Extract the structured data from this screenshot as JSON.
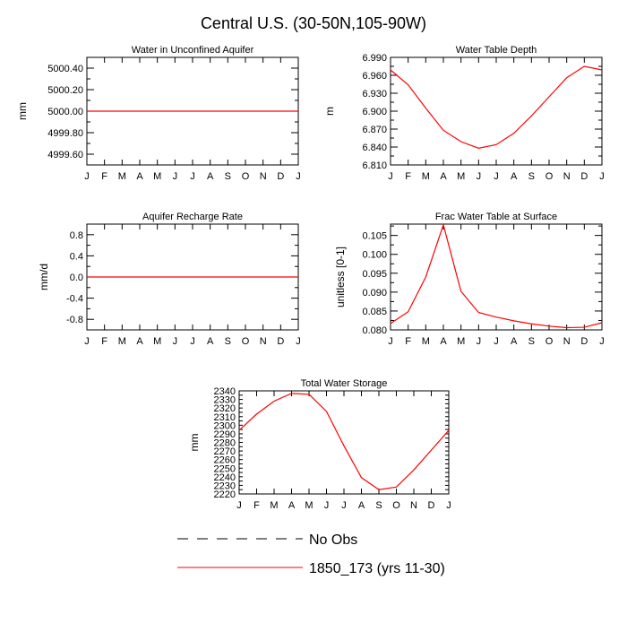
{
  "title": "Central U.S. (30-50N,105-90W)",
  "colors": {
    "line": "#ff0000",
    "axis": "#000000",
    "obs": "#000000"
  },
  "legend": {
    "entries": [
      {
        "label": "No Obs",
        "style": "dashed"
      },
      {
        "label": "1850_173 (yrs 11-30)",
        "style": "solid"
      }
    ]
  },
  "chart_data": [
    {
      "type": "line",
      "title": "Water in Unconfined Aquifer",
      "xlabel": "",
      "ylabel": "mm",
      "categories": [
        "J",
        "F",
        "M",
        "A",
        "M",
        "J",
        "J",
        "A",
        "S",
        "O",
        "N",
        "D",
        "J"
      ],
      "ylim": [
        4999.5,
        5000.5
      ],
      "yticks": [
        4999.6,
        4999.8,
        5000.0,
        5000.2,
        5000.4
      ],
      "ytick_labels": [
        "4999.60",
        "4999.80",
        "5000.00",
        "5000.20",
        "5000.40"
      ],
      "series": [
        {
          "name": "1850_173 (yrs 11-30)",
          "values": [
            5000,
            5000,
            5000,
            5000,
            5000,
            5000,
            5000,
            5000,
            5000,
            5000,
            5000,
            5000,
            5000
          ]
        }
      ]
    },
    {
      "type": "line",
      "title": "Water Table Depth",
      "xlabel": "",
      "ylabel": "m",
      "categories": [
        "J",
        "F",
        "M",
        "A",
        "M",
        "J",
        "J",
        "A",
        "S",
        "O",
        "N",
        "D",
        "J"
      ],
      "ylim": [
        6.81,
        6.99
      ],
      "yticks": [
        6.81,
        6.84,
        6.87,
        6.9,
        6.93,
        6.96,
        6.99
      ],
      "ytick_labels": [
        "6.810",
        "6.840",
        "6.870",
        "6.900",
        "6.930",
        "6.960",
        "6.990"
      ],
      "series": [
        {
          "name": "1850_173 (yrs 11-30)",
          "values": [
            6.969,
            6.944,
            6.905,
            6.868,
            6.849,
            6.838,
            6.844,
            6.863,
            6.892,
            6.924,
            6.956,
            6.975,
            6.969
          ]
        }
      ]
    },
    {
      "type": "line",
      "title": "Aquifer Recharge Rate",
      "xlabel": "",
      "ylabel": "mm/d",
      "categories": [
        "J",
        "F",
        "M",
        "A",
        "M",
        "J",
        "J",
        "A",
        "S",
        "O",
        "N",
        "D",
        "J"
      ],
      "ylim": [
        -1.0,
        1.0
      ],
      "yticks": [
        -0.8,
        -0.4,
        0.0,
        0.4,
        0.8
      ],
      "ytick_labels": [
        "-0.8",
        "-0.4",
        "0.0",
        "0.4",
        "0.8"
      ],
      "series": [
        {
          "name": "1850_173 (yrs 11-30)",
          "values": [
            0,
            0,
            0,
            0,
            0,
            0,
            0,
            0,
            0,
            0,
            0,
            0,
            0
          ]
        }
      ]
    },
    {
      "type": "line",
      "title": "Frac Water Table at Surface",
      "xlabel": "",
      "ylabel": "unitless [0-1]",
      "categories": [
        "J",
        "F",
        "M",
        "A",
        "M",
        "J",
        "J",
        "A",
        "S",
        "O",
        "N",
        "D",
        "J"
      ],
      "ylim": [
        0.08,
        0.108
      ],
      "yticks": [
        0.08,
        0.085,
        0.09,
        0.095,
        0.1,
        0.105
      ],
      "ytick_labels": [
        "0.080",
        "0.085",
        "0.090",
        "0.095",
        "0.100",
        "0.105"
      ],
      "series": [
        {
          "name": "1850_173 (yrs 11-30)",
          "values": [
            0.0817,
            0.0848,
            0.094,
            0.1078,
            0.0902,
            0.0846,
            0.0834,
            0.0824,
            0.0816,
            0.081,
            0.0806,
            0.0807,
            0.0819
          ]
        }
      ]
    },
    {
      "type": "line",
      "title": "Total Water Storage",
      "xlabel": "",
      "ylabel": "mm",
      "categories": [
        "J",
        "F",
        "M",
        "A",
        "M",
        "J",
        "J",
        "A",
        "S",
        "O",
        "N",
        "D",
        "J"
      ],
      "ylim": [
        2220,
        2340
      ],
      "yticks": [
        2220,
        2230,
        2240,
        2250,
        2260,
        2270,
        2280,
        2290,
        2300,
        2310,
        2320,
        2330,
        2340
      ],
      "ytick_labels": [
        "2220",
        "2230",
        "2240",
        "2250",
        "2260",
        "2270",
        "2280",
        "2290",
        "2300",
        "2310",
        "2320",
        "2330",
        "2340"
      ],
      "series": [
        {
          "name": "1850_173 (yrs 11-30)",
          "values": [
            2294,
            2313,
            2328,
            2337,
            2336,
            2316,
            2276,
            2239,
            2225,
            2228,
            2248,
            2271,
            2294
          ]
        }
      ]
    }
  ]
}
